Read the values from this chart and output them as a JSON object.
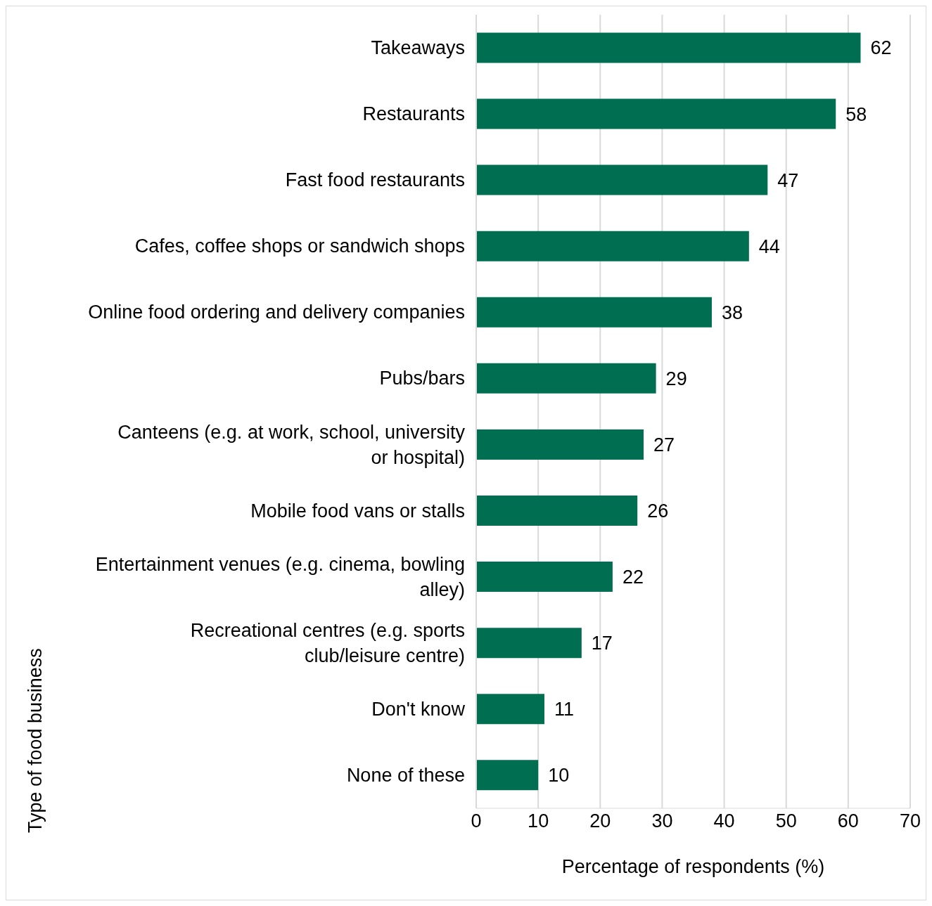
{
  "chart_data": {
    "type": "bar",
    "orientation": "horizontal",
    "xlabel": "Percentage of respondents (%)",
    "ylabel": "Type of food business",
    "categories": [
      "Takeaways",
      "Restaurants",
      "Fast food restaurants",
      "Cafes, coffee shops or sandwich shops",
      "Online food ordering and delivery companies",
      "Pubs/bars",
      "Canteens (e.g. at work, school, university or hospital)",
      "Mobile food vans or stalls",
      "Entertainment venues (e.g. cinema, bowling alley)",
      "Recreational centres (e.g. sports club/leisure centre)",
      "Don't know",
      "None of these"
    ],
    "values": [
      62,
      58,
      47,
      44,
      38,
      29,
      27,
      26,
      22,
      17,
      11,
      10
    ],
    "color": "#006f51",
    "xlim": [
      0,
      70
    ],
    "xticks": [
      0,
      10,
      20,
      30,
      40,
      50,
      60,
      70
    ],
    "grid": "x",
    "data_labels": true
  }
}
